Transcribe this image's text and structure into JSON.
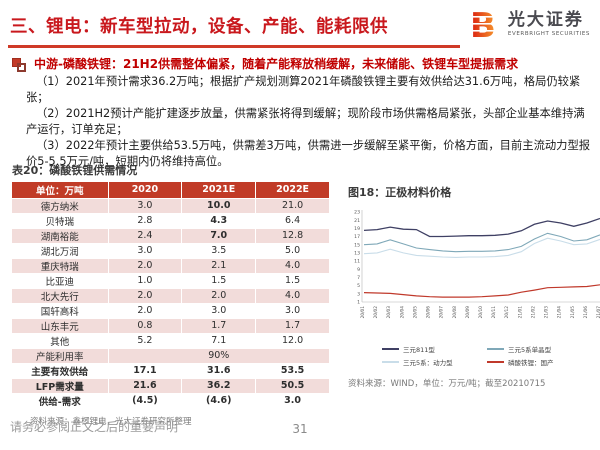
{
  "header": {
    "title": "三、锂电：新车型拉动，设备、产能、能耗限供",
    "logo_cn": "光大证券",
    "logo_en": "EVERBRIGHT SECURITIES"
  },
  "intro": {
    "heading": "中游-磷酸铁锂：21H2供需整体偏紧，随着产能释放稍缓解，未来储能、铁锂车型提振需求",
    "paragraphs": [
      "（1）2021年预计需求36.2万吨；根据扩产规划测算2021年磷酸铁锂主要有效供给达31.6万吨，格局仍较紧张；",
      "（2）2021H2预计产能扩建逐步放量，供需紧张将得到缓解；现阶段市场供需格局紧张，头部企业基本维持满产运行，订单充足；",
      "（3）2022年预计主要供给53.5万吨，供需差3万吨，供需进一步缓解至紧平衡，价格方面，目前主流动力型报价5-5.5万元/吨，短期内仍将维持高位。"
    ]
  },
  "table": {
    "title": "表20：磷酸铁锂供需情况",
    "columns": [
      "单位：万吨",
      "2020",
      "2021E",
      "2022E"
    ],
    "rows": [
      {
        "cells": [
          "德方纳米",
          "3.0",
          "10.0",
          "21.0"
        ],
        "red": [
          2
        ]
      },
      {
        "cells": [
          "贝特瑞",
          "2.8",
          "4.3",
          "6.4"
        ],
        "red": [
          2
        ]
      },
      {
        "cells": [
          "湖南裕能",
          "2.4",
          "7.0",
          "12.8"
        ],
        "red": [
          2
        ]
      },
      {
        "cells": [
          "湖北万润",
          "3.0",
          "3.5",
          "5.0"
        ]
      },
      {
        "cells": [
          "重庆特瑞",
          "2.0",
          "2.1",
          "4.0"
        ]
      },
      {
        "cells": [
          "比亚迪",
          "1.0",
          "1.5",
          "1.5"
        ]
      },
      {
        "cells": [
          "北大先行",
          "2.0",
          "2.0",
          "4.0"
        ]
      },
      {
        "cells": [
          "国轩高科",
          "2.0",
          "3.0",
          "3.0"
        ]
      },
      {
        "cells": [
          "山东丰元",
          "0.8",
          "1.7",
          "1.7"
        ]
      },
      {
        "cells": [
          "其他",
          "5.2",
          "7.1",
          "12.0"
        ]
      },
      {
        "cells": [
          "产能利用率",
          "90%"
        ],
        "merged": true,
        "topline": true
      },
      {
        "cells": [
          "主要有效供给",
          "17.1",
          "31.6",
          "53.5"
        ],
        "bold": true
      },
      {
        "cells": [
          "LFP需求量",
          "21.6",
          "36.2",
          "50.5"
        ],
        "bold": true
      },
      {
        "cells": [
          "供给-需求",
          "(4.5)",
          "(4.6)",
          "3.0"
        ],
        "bold": true,
        "red": [
          1,
          2
        ]
      }
    ],
    "source": "资料来源：鑫椤锂电，光大证券研究所整理"
  },
  "chart_data": {
    "type": "line",
    "title": "图18：正极材料价格",
    "source": "资料来源：WIND，单位：万元/吨；截至20210715",
    "unit": "万元/吨",
    "x": [
      "20/01",
      "20/02",
      "20/03",
      "20/04",
      "20/05",
      "20/06",
      "20/07",
      "20/08",
      "20/09",
      "20/10",
      "20/11",
      "20/12",
      "21/01",
      "21/02",
      "21/03",
      "21/04",
      "21/05",
      "21/06",
      "21/07"
    ],
    "series": [
      {
        "name": "三元811型",
        "color": "#3f4064",
        "width": 1.3,
        "values": [
          18.5,
          18.7,
          19.3,
          18.8,
          18.7,
          17.0,
          17.0,
          17.1,
          17.2,
          17.2,
          17.3,
          17.6,
          18.4,
          20.0,
          20.8,
          20.3,
          19.5,
          20.3,
          21.4
        ]
      },
      {
        "name": "三元5系单晶型",
        "color": "#7fa8b8",
        "width": 1.1,
        "values": [
          15.0,
          15.2,
          16.2,
          15.2,
          14.2,
          13.8,
          13.5,
          13.3,
          13.4,
          13.4,
          13.5,
          13.8,
          14.6,
          16.4,
          17.8,
          17.0,
          15.9,
          16.2,
          17.4
        ]
      },
      {
        "name": "三元5系：动力型",
        "color": "#c9dde9",
        "width": 1.1,
        "values": [
          12.8,
          13.0,
          13.9,
          13.0,
          12.4,
          12.2,
          12.0,
          11.9,
          12.0,
          12.0,
          12.1,
          12.4,
          13.3,
          15.3,
          16.6,
          15.9,
          15.0,
          15.2,
          16.3
        ]
      },
      {
        "name": "磷酸铁锂：国产",
        "color": "#c0392b",
        "width": 1.2,
        "values": [
          3.3,
          3.2,
          3.1,
          2.8,
          2.5,
          2.3,
          2.2,
          2.2,
          2.2,
          2.3,
          2.5,
          2.7,
          3.4,
          3.9,
          4.5,
          4.6,
          4.7,
          4.8,
          5.2
        ]
      }
    ],
    "ylim": [
      1,
      23
    ],
    "yticks": [
      1,
      3,
      5,
      7,
      9,
      11,
      13,
      15,
      17,
      19,
      21,
      23
    ],
    "grid": false,
    "legend_position": "bottom"
  },
  "footer": {
    "disclaimer": "请务必参阅正文之后的重要声明",
    "page_number": "31"
  },
  "colors": {
    "title_red": "#c9181d",
    "rule_red": "#cf3a27",
    "heading_red": "#c00000",
    "table_header_red": "#c13b27",
    "row_pink": "#f2dcda",
    "value_red": "#c00000"
  }
}
